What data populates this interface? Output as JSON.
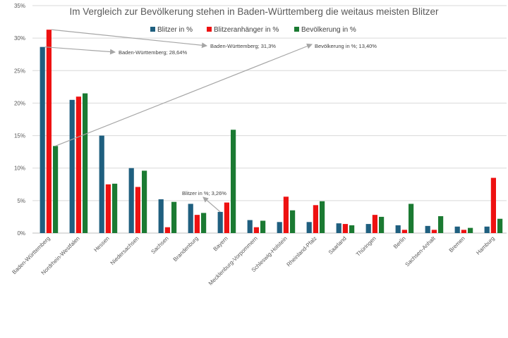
{
  "chart_data": {
    "type": "bar",
    "title": "Im Vergleich zur Bevölkerung stehen in Baden-Württemberg die weitaus meisten Blitzer",
    "categories": [
      "Baden-Württemberg",
      "Nordrhein-Westfalen",
      "Hessen",
      "Niedersachsen",
      "Sachsen",
      "Brandenburg",
      "Bayern",
      "Mecklenburg-Vorpommern",
      "Schleswig-Holstein",
      "Rheinland-Pfalz",
      "Saarland",
      "Thüringen",
      "Berlin",
      "Sachsen-Anhalt",
      "Bremen",
      "Hamburg"
    ],
    "series": [
      {
        "name": "Blitzer in %",
        "color": "#1f5f7f",
        "values": [
          28.64,
          20.5,
          15.0,
          10.0,
          5.2,
          4.5,
          3.26,
          2.0,
          1.7,
          1.7,
          1.5,
          1.4,
          1.2,
          1.1,
          1.0,
          1.0
        ]
      },
      {
        "name": "Blitzeranhänger in %",
        "color": "#ee1111",
        "values": [
          31.3,
          21.0,
          7.5,
          7.1,
          0.9,
          2.8,
          4.7,
          0.9,
          5.6,
          4.3,
          1.4,
          2.8,
          0.5,
          0.5,
          0.5,
          8.5
        ]
      },
      {
        "name": "Bevölkerung in %",
        "color": "#1b7a32",
        "values": [
          13.4,
          21.5,
          7.6,
          9.6,
          4.8,
          3.1,
          15.9,
          1.9,
          3.5,
          4.9,
          1.2,
          2.5,
          4.5,
          2.6,
          0.8,
          2.2
        ]
      }
    ],
    "ylim": [
      0,
      35
    ],
    "yticks": [
      "0%",
      "5%",
      "10%",
      "15%",
      "20%",
      "25%",
      "30%",
      "35%"
    ],
    "ytick_values": [
      0,
      5,
      10,
      15,
      20,
      25,
      30,
      35
    ],
    "grid": true,
    "legend": "top",
    "annotations": [
      {
        "text": "Baden-Württemberg; 28,64%",
        "category": 0,
        "series": 0
      },
      {
        "text": "Baden-Württemberg; 31,3%",
        "category": 0,
        "series": 1
      },
      {
        "text": "Bevölkerung in %; 13,40%",
        "category": 0,
        "series": 2
      },
      {
        "text": "Blitzer in %; 3,26%",
        "category": 6,
        "series": 0
      }
    ]
  }
}
